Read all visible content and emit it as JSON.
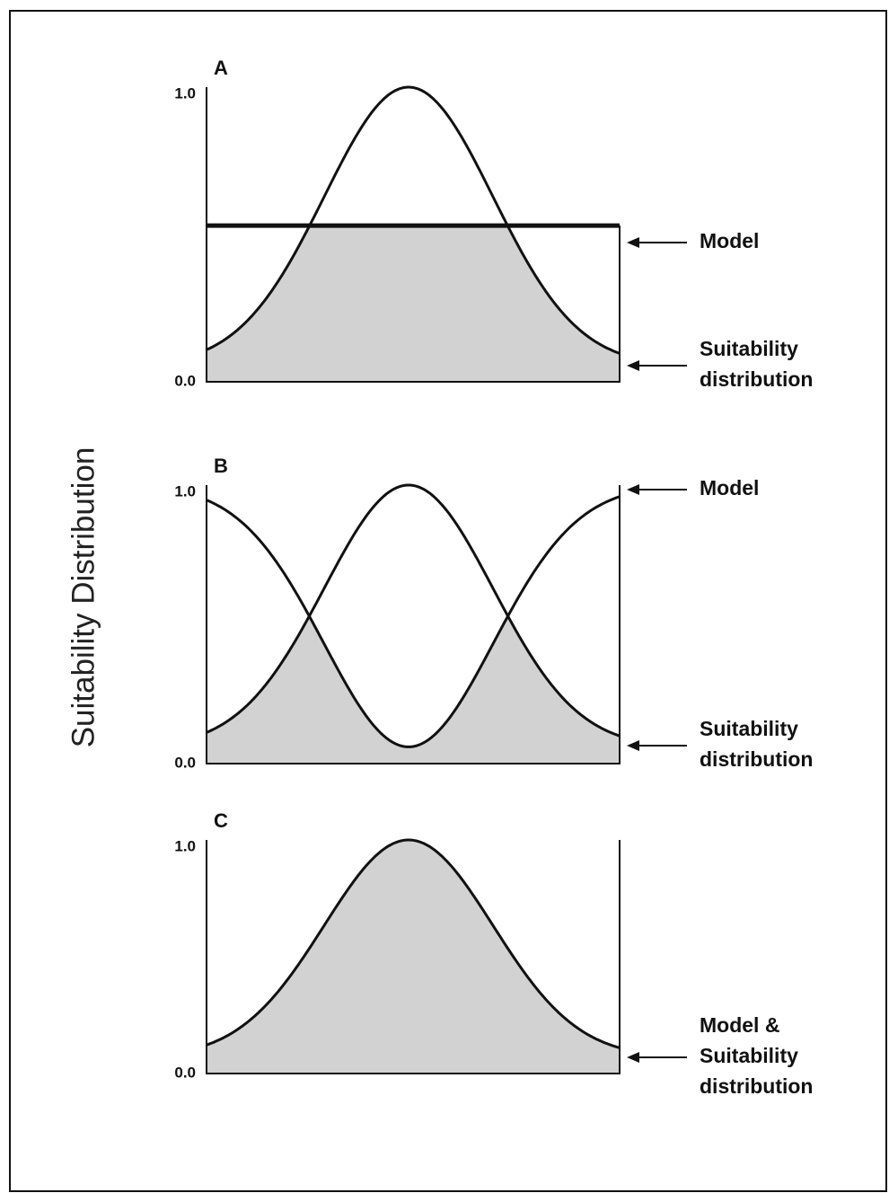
{
  "y_axis_label": "Suitability Distribution",
  "panels": [
    {
      "label": "A",
      "tick_top": "1.0",
      "tick_bottom": "0.0",
      "annotations": [
        {
          "lines": [
            "Model"
          ]
        },
        {
          "lines": [
            "Suitability",
            "distribution"
          ]
        }
      ]
    },
    {
      "label": "B",
      "tick_top": "1.0",
      "tick_bottom": "0.0",
      "annotations": [
        {
          "lines": [
            "Model"
          ]
        },
        {
          "lines": [
            "Suitability",
            "distribution"
          ]
        }
      ]
    },
    {
      "label": "C",
      "tick_top": "1.0",
      "tick_bottom": "0.0",
      "annotations": [
        {
          "lines": [
            "Model &",
            "Suitability",
            "distribution"
          ]
        }
      ]
    }
  ]
}
